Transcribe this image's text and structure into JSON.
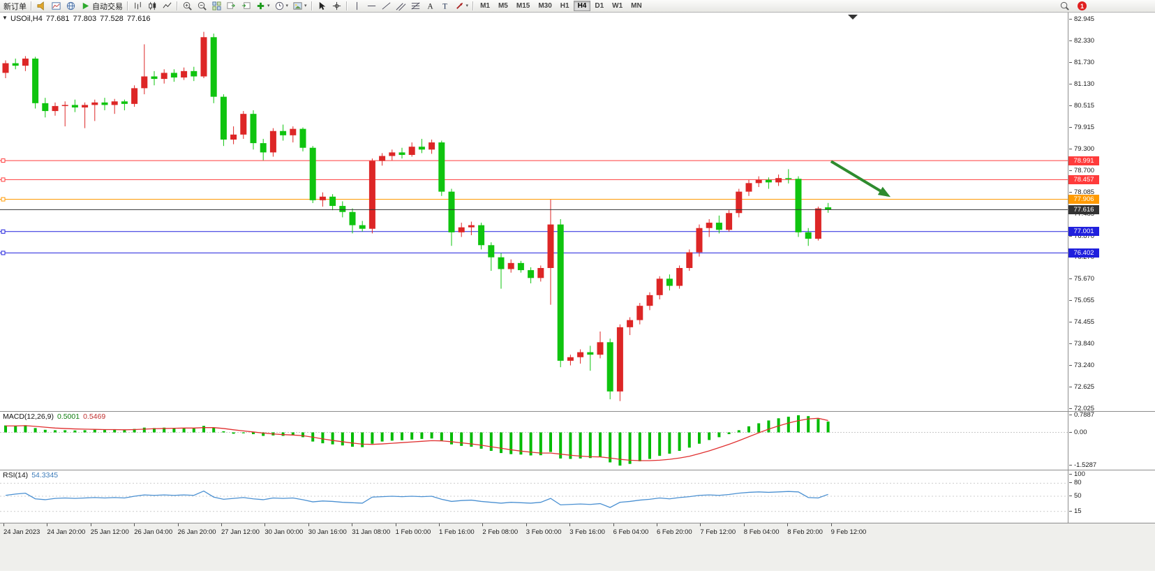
{
  "toolbar": {
    "new_order_label": "新订单",
    "autotrading_label": "自动交易",
    "timeframes": [
      "M1",
      "M5",
      "M15",
      "M30",
      "H1",
      "H4",
      "D1",
      "W1",
      "MN"
    ],
    "active_timeframe": "H4",
    "notification_badge": "1"
  },
  "main_chart": {
    "symbol_title": "USOil,H4",
    "open": "77.681",
    "high": "77.803",
    "low": "77.528",
    "close": "77.616"
  },
  "macd_panel": {
    "title": "MACD(12,26,9)",
    "value_main": "0.5001",
    "value_signal": "0.5469"
  },
  "rsi_panel": {
    "title": "RSI(14)",
    "value": "54.3345"
  },
  "chart_data": [
    {
      "type": "candlestick",
      "title": "USOil H4",
      "up_color": "#dd2626",
      "down_color": "#0fc40f",
      "ylim": [
        71.95,
        83.14
      ],
      "y_ticks": [
        "82.945",
        "82.330",
        "81.730",
        "81.130",
        "80.515",
        "79.915",
        "79.300",
        "78.700",
        "78.085",
        "77.485",
        "76.870",
        "76.270",
        "75.670",
        "75.055",
        "74.455",
        "73.840",
        "73.240",
        "72.625",
        "72.025"
      ],
      "x_labels": [
        "24 Jan 2023",
        "24 Jan 20:00",
        "25 Jan 12:00",
        "26 Jan 04:00",
        "26 Jan 20:00",
        "27 Jan 12:00",
        "30 Jan 00:00",
        "30 Jan 16:00",
        "31 Jan 08:00",
        "1 Feb 00:00",
        "1 Feb 16:00",
        "2 Feb 08:00",
        "3 Feb 00:00",
        "3 Feb 16:00",
        "6 Feb 04:00",
        "6 Feb 20:00",
        "7 Feb 12:00",
        "8 Feb 04:00",
        "8 Feb 20:00",
        "9 Feb 12:00"
      ],
      "levels": [
        {
          "price": 78.991,
          "label": "78.991",
          "color": "#ff3b3b",
          "kind": "resistance"
        },
        {
          "price": 78.457,
          "label": "78.457",
          "color": "#ff3b3b",
          "kind": "resistance"
        },
        {
          "price": 77.906,
          "label": "77.906",
          "color": "#ff9a00",
          "kind": "pivot"
        },
        {
          "price": 77.616,
          "label": "77.616",
          "color": "#333333",
          "kind": "current-price"
        },
        {
          "price": 77.001,
          "label": "77.001",
          "color": "#2020dd",
          "kind": "support"
        },
        {
          "price": 76.402,
          "label": "76.402",
          "color": "#2020dd",
          "kind": "support"
        }
      ],
      "arrow": {
        "from_bar": 83.3,
        "from_price": 78.97,
        "to_bar": 89.0,
        "to_price": 78.02,
        "color": "#2e8b2e"
      },
      "candles": [
        [
          81.45,
          81.8,
          81.3,
          81.72
        ],
        [
          81.72,
          81.85,
          81.55,
          81.65
        ],
        [
          81.65,
          81.92,
          81.5,
          81.85
        ],
        [
          81.85,
          81.9,
          80.45,
          80.6
        ],
        [
          80.6,
          80.75,
          80.2,
          80.38
        ],
        [
          80.38,
          80.62,
          80.25,
          80.52
        ],
        [
          80.52,
          80.65,
          79.95,
          80.55
        ],
        [
          80.55,
          80.7,
          80.35,
          80.48
        ],
        [
          80.48,
          80.62,
          79.9,
          80.55
        ],
        [
          80.55,
          80.7,
          80.1,
          80.62
        ],
        [
          80.62,
          80.75,
          80.4,
          80.55
        ],
        [
          80.55,
          80.72,
          80.3,
          80.65
        ],
        [
          80.65,
          80.7,
          80.4,
          80.58
        ],
        [
          80.58,
          81.1,
          80.5,
          81.02
        ],
        [
          81.02,
          82.25,
          80.85,
          81.35
        ],
        [
          81.35,
          81.5,
          81.1,
          81.28
        ],
        [
          81.28,
          81.55,
          81.15,
          81.45
        ],
        [
          81.45,
          81.55,
          81.2,
          81.32
        ],
        [
          81.32,
          81.6,
          81.25,
          81.5
        ],
        [
          81.5,
          81.62,
          81.22,
          81.35
        ],
        [
          81.35,
          82.6,
          81.3,
          82.45
        ],
        [
          82.45,
          82.55,
          80.6,
          80.78
        ],
        [
          80.78,
          80.85,
          79.4,
          79.58
        ],
        [
          79.58,
          79.95,
          79.45,
          79.72
        ],
        [
          79.72,
          80.38,
          79.6,
          80.3
        ],
        [
          80.3,
          80.4,
          79.3,
          79.48
        ],
        [
          79.48,
          79.6,
          79.0,
          79.22
        ],
        [
          79.22,
          79.9,
          79.1,
          79.82
        ],
        [
          79.82,
          80.0,
          79.55,
          79.7
        ],
        [
          79.7,
          79.95,
          79.5,
          79.88
        ],
        [
          79.88,
          79.92,
          79.25,
          79.35
        ],
        [
          79.35,
          79.4,
          77.8,
          77.88
        ],
        [
          77.88,
          78.1,
          77.7,
          77.98
        ],
        [
          77.98,
          78.05,
          77.6,
          77.72
        ],
        [
          77.72,
          77.85,
          77.4,
          77.55
        ],
        [
          77.55,
          77.65,
          76.95,
          77.18
        ],
        [
          77.18,
          77.3,
          77.0,
          77.08
        ],
        [
          77.08,
          79.05,
          76.95,
          78.98
        ],
        [
          78.98,
          79.2,
          78.85,
          79.12
        ],
        [
          79.12,
          79.3,
          79.0,
          79.22
        ],
        [
          79.22,
          79.35,
          79.05,
          79.15
        ],
        [
          79.15,
          79.5,
          79.1,
          79.38
        ],
        [
          79.38,
          79.6,
          79.2,
          79.3
        ],
        [
          79.3,
          79.58,
          79.18,
          79.5
        ],
        [
          79.5,
          79.55,
          78.0,
          78.12
        ],
        [
          78.12,
          78.2,
          76.6,
          76.98
        ],
        [
          76.98,
          77.25,
          76.85,
          77.12
        ],
        [
          77.12,
          77.28,
          76.9,
          77.18
        ],
        [
          77.18,
          77.25,
          76.5,
          76.62
        ],
        [
          76.62,
          76.7,
          75.9,
          76.28
        ],
        [
          76.28,
          76.4,
          75.4,
          75.95
        ],
        [
          75.95,
          76.22,
          75.85,
          76.12
        ],
        [
          76.12,
          76.18,
          75.85,
          75.92
        ],
        [
          75.92,
          76.0,
          75.55,
          75.7
        ],
        [
          75.7,
          76.05,
          75.6,
          75.98
        ],
        [
          75.98,
          77.9,
          74.95,
          77.2
        ],
        [
          77.2,
          77.35,
          73.2,
          73.38
        ],
        [
          73.38,
          73.55,
          73.25,
          73.48
        ],
        [
          73.48,
          73.7,
          73.3,
          73.62
        ],
        [
          73.62,
          73.8,
          73.1,
          73.55
        ],
        [
          73.55,
          74.2,
          73.45,
          73.9
        ],
        [
          73.9,
          74.0,
          72.3,
          72.52
        ],
        [
          72.52,
          74.4,
          72.25,
          74.32
        ],
        [
          74.32,
          74.6,
          74.1,
          74.52
        ],
        [
          74.52,
          75.0,
          74.4,
          74.92
        ],
        [
          74.92,
          75.3,
          74.8,
          75.22
        ],
        [
          75.22,
          75.75,
          75.1,
          75.68
        ],
        [
          75.68,
          75.8,
          75.35,
          75.48
        ],
        [
          75.48,
          76.05,
          75.4,
          75.98
        ],
        [
          75.98,
          76.5,
          75.9,
          76.42
        ],
        [
          76.42,
          77.2,
          76.3,
          77.1
        ],
        [
          77.1,
          77.35,
          76.85,
          77.25
        ],
        [
          77.25,
          77.45,
          76.95,
          77.05
        ],
        [
          77.05,
          77.6,
          77.0,
          77.52
        ],
        [
          77.52,
          78.2,
          77.4,
          78.12
        ],
        [
          78.12,
          78.45,
          78.0,
          78.36
        ],
        [
          78.36,
          78.55,
          78.25,
          78.45
        ],
        [
          78.45,
          78.52,
          78.2,
          78.38
        ],
        [
          78.38,
          78.6,
          78.28,
          78.5
        ],
        [
          78.5,
          78.75,
          78.35,
          78.48
        ],
        [
          78.48,
          78.55,
          76.85,
          76.98
        ],
        [
          76.98,
          77.1,
          76.6,
          76.8
        ],
        [
          76.8,
          77.7,
          76.75,
          77.65
        ],
        [
          77.681,
          77.803,
          77.528,
          77.616
        ]
      ]
    },
    {
      "type": "bar",
      "title": "MACD(12,26,9)",
      "current_values": [
        0.5001,
        0.5469
      ],
      "axis_ticks": [
        "0.7887",
        "0.00",
        "-1.5287"
      ],
      "ylim": [
        -1.75,
        0.95
      ],
      "histogram_color": "#00bb00",
      "signal_color": "#e03030",
      "histogram": [
        0.32,
        0.3,
        0.33,
        0.2,
        0.12,
        0.1,
        0.1,
        0.09,
        0.1,
        0.12,
        0.11,
        0.12,
        0.1,
        0.16,
        0.22,
        0.2,
        0.22,
        0.2,
        0.21,
        0.18,
        0.3,
        0.22,
        0.05,
        -0.06,
        -0.04,
        -0.08,
        -0.16,
        -0.14,
        -0.16,
        -0.14,
        -0.22,
        -0.42,
        -0.5,
        -0.55,
        -0.6,
        -0.66,
        -0.68,
        -0.52,
        -0.42,
        -0.38,
        -0.36,
        -0.33,
        -0.3,
        -0.28,
        -0.38,
        -0.55,
        -0.62,
        -0.66,
        -0.75,
        -0.85,
        -0.95,
        -1.0,
        -1.02,
        -1.06,
        -1.05,
        -0.9,
        -1.2,
        -1.22,
        -1.2,
        -1.18,
        -1.12,
        -1.38,
        -1.5287,
        -1.45,
        -1.33,
        -1.22,
        -1.08,
        -0.98,
        -0.85,
        -0.7,
        -0.52,
        -0.35,
        -0.22,
        -0.08,
        0.1,
        0.28,
        0.42,
        0.55,
        0.65,
        0.72,
        0.7887,
        0.75,
        0.62,
        0.5001
      ],
      "signal": [
        0.3,
        0.3,
        0.31,
        0.28,
        0.24,
        0.2,
        0.18,
        0.16,
        0.15,
        0.14,
        0.13,
        0.13,
        0.12,
        0.13,
        0.15,
        0.17,
        0.18,
        0.19,
        0.2,
        0.2,
        0.22,
        0.22,
        0.18,
        0.12,
        0.07,
        0.02,
        -0.03,
        -0.07,
        -0.1,
        -0.12,
        -0.15,
        -0.22,
        -0.3,
        -0.37,
        -0.43,
        -0.49,
        -0.54,
        -0.55,
        -0.53,
        -0.5,
        -0.47,
        -0.44,
        -0.41,
        -0.38,
        -0.39,
        -0.43,
        -0.48,
        -0.53,
        -0.59,
        -0.66,
        -0.73,
        -0.8,
        -0.86,
        -0.91,
        -0.95,
        -0.95,
        -1.0,
        -1.05,
        -1.09,
        -1.12,
        -1.13,
        -1.18,
        -1.24,
        -1.28,
        -1.3,
        -1.3,
        -1.28,
        -1.24,
        -1.18,
        -1.1,
        -0.98,
        -0.85,
        -0.7,
        -0.55,
        -0.38,
        -0.2,
        -0.02,
        0.15,
        0.3,
        0.43,
        0.54,
        0.62,
        0.65,
        0.5469
      ]
    },
    {
      "type": "line",
      "title": "RSI(14)",
      "current_value": 54.3345,
      "axis_ticks": [
        "100",
        "80",
        "50",
        "15"
      ],
      "level_lines": [
        80,
        50,
        15
      ],
      "ylim": [
        0,
        100
      ],
      "line_color": "#4a90d2",
      "values": [
        52,
        55,
        57,
        44,
        42,
        45,
        46,
        45,
        46,
        47,
        46,
        47,
        46,
        50,
        53,
        52,
        53,
        52,
        53,
        52,
        62,
        48,
        43,
        45,
        47,
        44,
        42,
        46,
        45,
        46,
        42,
        37,
        39,
        38,
        36,
        35,
        34,
        48,
        49,
        50,
        49,
        50,
        49,
        50,
        43,
        38,
        40,
        41,
        38,
        36,
        34,
        36,
        35,
        34,
        36,
        45,
        30,
        31,
        32,
        31,
        33,
        24,
        36,
        38,
        41,
        43,
        46,
        44,
        47,
        49,
        52,
        53,
        52,
        54,
        57,
        59,
        60,
        59,
        60,
        61,
        60,
        47,
        46,
        54.3345
      ]
    }
  ]
}
